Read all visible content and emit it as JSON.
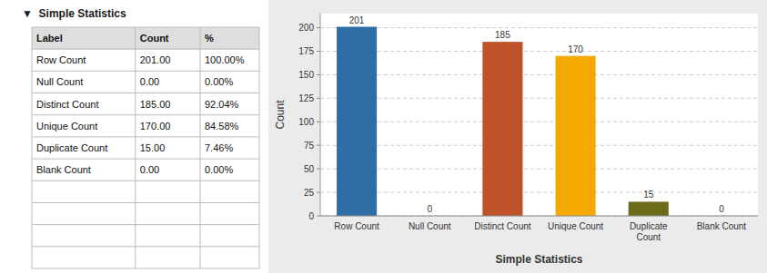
{
  "chart_data": [
    {
      "type": "table",
      "title": "▼  Simple Statistics",
      "columns": [
        "Label",
        "Count",
        "%"
      ],
      "rows": [
        [
          "Row Count",
          "201.00",
          "100.00%"
        ],
        [
          "Null Count",
          "0.00",
          "0.00%"
        ],
        [
          "Distinct Count",
          "185.00",
          "92.04%"
        ],
        [
          "Unique Count",
          "170.00",
          "84.58%"
        ],
        [
          "Duplicate Count",
          "15.00",
          "7.46%"
        ],
        [
          "Blank Count",
          "0.00",
          "0.00%"
        ]
      ]
    },
    {
      "type": "bar",
      "categories": [
        "Row Count",
        "Null Count",
        "Distinct Count",
        "Unique Count",
        "Duplicate\nCount",
        "Blank Count"
      ],
      "values": [
        201,
        0,
        185,
        170,
        15,
        0
      ],
      "colors": [
        "#2F6EA5",
        "#2F6EA5",
        "#C0522A",
        "#F5A800",
        "#6B6B1A",
        "#2F6EA5"
      ],
      "xlabel": "Simple Statistics",
      "ylabel": "Count",
      "ylim": [
        0,
        215
      ],
      "yticks": [
        0,
        25,
        50,
        75,
        100,
        125,
        150,
        175,
        200
      ],
      "grid": true,
      "data_labels": true
    }
  ]
}
